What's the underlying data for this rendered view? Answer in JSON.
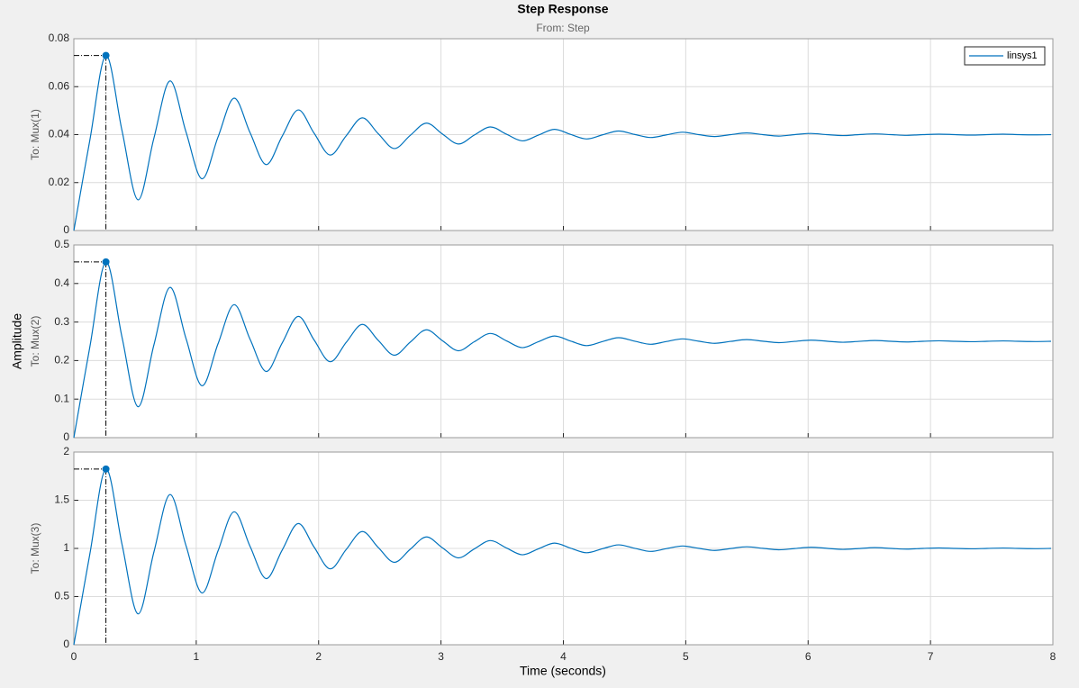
{
  "figure": {
    "title": "Step Response",
    "subtitle": "From: Step",
    "ylabel": "Amplitude",
    "xlabel": "Time (seconds)"
  },
  "chart_data": [
    {
      "type": "line",
      "ylabel": "To: Mux(1)",
      "legend": "upper right",
      "grid": true,
      "x": [
        0,
        0.131,
        0.262,
        0.393,
        0.524,
        0.654,
        0.785,
        0.916,
        1.047,
        1.178,
        1.309,
        1.44,
        1.571,
        1.702,
        1.833,
        1.963,
        2.094,
        2.225,
        2.356,
        2.487,
        2.618,
        2.749,
        2.88,
        3.011,
        3.142,
        3.272,
        3.403,
        3.534,
        3.665,
        3.796,
        3.927,
        4.058,
        4.189,
        4.32,
        4.451,
        4.581,
        4.712,
        4.843,
        4.974,
        5.105,
        5.236,
        5.367,
        5.498,
        5.629,
        5.76,
        5.89,
        6.021,
        6.152,
        6.283,
        6.414,
        6.545,
        6.676,
        6.807,
        6.938,
        7.069,
        7.199,
        7.33,
        7.461,
        7.592,
        7.723,
        7.854,
        7.985
      ],
      "series": [
        {
          "name": "linsys1",
          "color": "#0072bd",
          "values": [
            0,
            0.0378,
            0.073,
            0.0418,
            0.0128,
            0.0385,
            0.0624,
            0.0412,
            0.0216,
            0.039,
            0.0552,
            0.0408,
            0.0275,
            0.0393,
            0.0503,
            0.0406,
            0.0315,
            0.0395,
            0.047,
            0.0404,
            0.0342,
            0.0397,
            0.0448,
            0.0403,
            0.0361,
            0.0398,
            0.0432,
            0.0402,
            0.0374,
            0.0398,
            0.0422,
            0.0401,
            0.0382,
            0.0399,
            0.0415,
            0.0401,
            0.0388,
            0.0399,
            0.041,
            0.04,
            0.0392,
            0.04,
            0.0407,
            0.04,
            0.0394,
            0.04,
            0.0405,
            0.04,
            0.0396,
            0.04,
            0.0403,
            0.04,
            0.0397,
            0.04,
            0.0402,
            0.04,
            0.0398,
            0.04,
            0.0402,
            0.04,
            0.0399,
            0.04
          ]
        }
      ],
      "xlim": [
        0,
        8
      ],
      "xticks": [
        0,
        1,
        2,
        3,
        4,
        5,
        6,
        7,
        8
      ],
      "ylim": [
        0,
        0.08
      ],
      "yticks": [
        0,
        0.02,
        0.04,
        0.06,
        0.08
      ]
    },
    {
      "type": "line",
      "ylabel": "To: Mux(2)",
      "grid": true,
      "x": [
        0,
        0.131,
        0.262,
        0.393,
        0.524,
        0.654,
        0.785,
        0.916,
        1.047,
        1.178,
        1.309,
        1.44,
        1.571,
        1.702,
        1.833,
        1.963,
        2.094,
        2.225,
        2.356,
        2.487,
        2.618,
        2.749,
        2.88,
        3.011,
        3.142,
        3.272,
        3.403,
        3.534,
        3.665,
        3.796,
        3.927,
        4.058,
        4.189,
        4.32,
        4.451,
        4.581,
        4.712,
        4.843,
        4.974,
        5.105,
        5.236,
        5.367,
        5.498,
        5.629,
        5.76,
        5.89,
        6.021,
        6.152,
        6.283,
        6.414,
        6.545,
        6.676,
        6.807,
        6.938,
        7.069,
        7.199,
        7.33,
        7.461,
        7.592,
        7.723,
        7.854,
        7.985
      ],
      "series": [
        {
          "color": "#0072bd",
          "values": [
            0,
            0.236,
            0.456,
            0.2615,
            0.0803,
            0.2405,
            0.3898,
            0.2578,
            0.1348,
            0.2435,
            0.345,
            0.2553,
            0.1718,
            0.2455,
            0.3145,
            0.2535,
            0.197,
            0.247,
            0.2938,
            0.2525,
            0.214,
            0.248,
            0.2798,
            0.2518,
            0.2255,
            0.2488,
            0.2703,
            0.2513,
            0.2335,
            0.249,
            0.2638,
            0.2508,
            0.2388,
            0.2493,
            0.2593,
            0.2505,
            0.2423,
            0.2495,
            0.2563,
            0.2503,
            0.2448,
            0.2498,
            0.2543,
            0.2503,
            0.2465,
            0.2498,
            0.253,
            0.2503,
            0.2475,
            0.2498,
            0.252,
            0.25,
            0.2483,
            0.25,
            0.2513,
            0.25,
            0.249,
            0.25,
            0.251,
            0.25,
            0.2493,
            0.25
          ]
        }
      ],
      "xlim": [
        0,
        8
      ],
      "xticks": [
        0,
        1,
        2,
        3,
        4,
        5,
        6,
        7,
        8
      ],
      "ylim": [
        0,
        0.5
      ],
      "yticks": [
        0,
        0.1,
        0.2,
        0.3,
        0.4,
        0.5
      ]
    },
    {
      "type": "line",
      "ylabel": "To: Mux(3)",
      "grid": true,
      "x": [
        0,
        0.131,
        0.262,
        0.393,
        0.524,
        0.654,
        0.785,
        0.916,
        1.047,
        1.178,
        1.309,
        1.44,
        1.571,
        1.702,
        1.833,
        1.963,
        2.094,
        2.225,
        2.356,
        2.487,
        2.618,
        2.749,
        2.88,
        3.011,
        3.142,
        3.272,
        3.403,
        3.534,
        3.665,
        3.796,
        3.927,
        4.058,
        4.189,
        4.32,
        4.451,
        4.581,
        4.712,
        4.843,
        4.974,
        5.105,
        5.236,
        5.367,
        5.498,
        5.629,
        5.76,
        5.89,
        6.021,
        6.152,
        6.283,
        6.414,
        6.545,
        6.676,
        6.807,
        6.938,
        7.069,
        7.199,
        7.33,
        7.461,
        7.592,
        7.723,
        7.854,
        7.985
      ],
      "series": [
        {
          "color": "#0072bd",
          "values": [
            0,
            0.944,
            1.824,
            1.046,
            0.321,
            0.962,
            1.559,
            1.031,
            0.539,
            0.974,
            1.38,
            1.021,
            0.687,
            0.982,
            1.258,
            1.014,
            0.788,
            0.988,
            1.175,
            1.01,
            0.856,
            0.992,
            1.119,
            1.007,
            0.902,
            0.995,
            1.081,
            1.005,
            0.934,
            0.996,
            1.055,
            1.003,
            0.955,
            0.997,
            1.037,
            1.002,
            0.969,
            0.998,
            1.025,
            1.001,
            0.979,
            0.999,
            1.017,
            1.001,
            0.986,
            0.999,
            1.012,
            1.001,
            0.99,
            0.999,
            1.008,
            1,
            0.993,
            1,
            1.005,
            1,
            0.996,
            1,
            1.004,
            1,
            0.997,
            1
          ]
        }
      ],
      "xlim": [
        0,
        8
      ],
      "xticks": [
        0,
        1,
        2,
        3,
        4,
        5,
        6,
        7,
        8
      ],
      "ylim": [
        0,
        2
      ],
      "yticks": [
        0,
        0.5,
        1,
        1.5,
        2
      ]
    }
  ]
}
